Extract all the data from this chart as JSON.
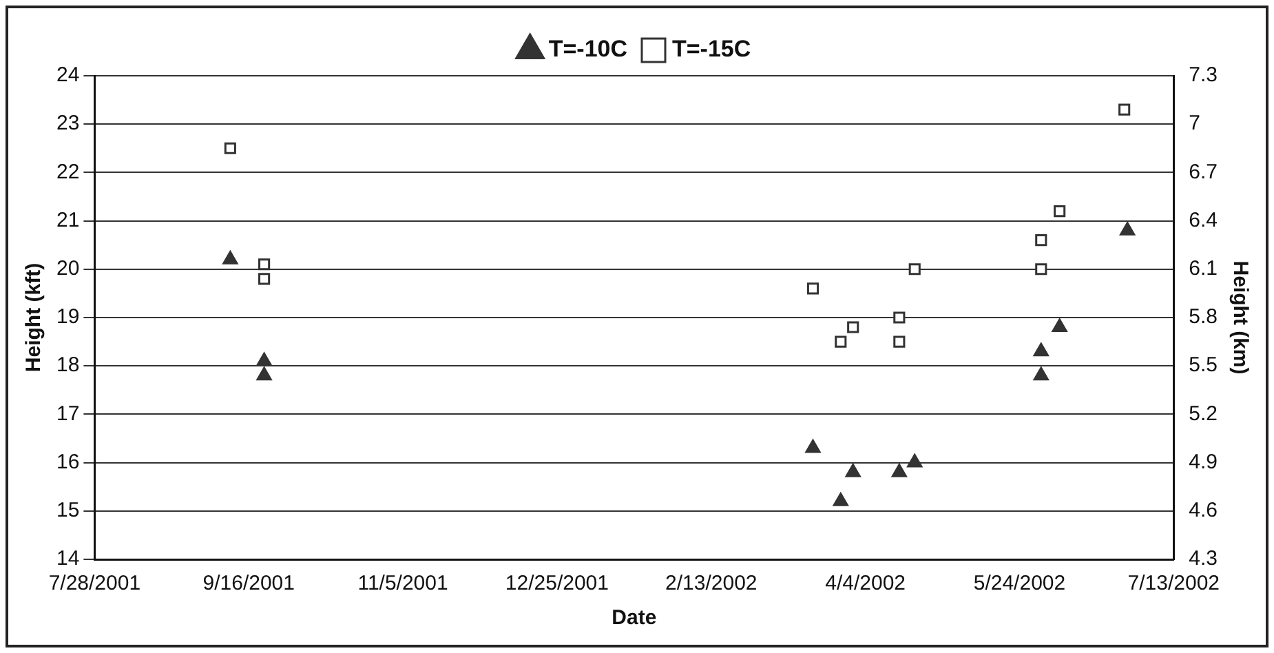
{
  "chart_data": {
    "type": "scatter",
    "xlabel": "Date",
    "ylabel": "Height (kft)",
    "y2label": "Height (km)",
    "xlim": [
      "2001-07-28",
      "2002-07-13"
    ],
    "xticks": [
      {
        "value": "2001-07-28",
        "label": "7/28/2001"
      },
      {
        "value": "2001-09-16",
        "label": "9/16/2001"
      },
      {
        "value": "2001-11-05",
        "label": "11/5/2001"
      },
      {
        "value": "2001-12-25",
        "label": "12/25/2001"
      },
      {
        "value": "2002-02-13",
        "label": "2/13/2002"
      },
      {
        "value": "2002-04-04",
        "label": "4/4/2002"
      },
      {
        "value": "2002-05-24",
        "label": "5/24/2002"
      },
      {
        "value": "2002-07-13",
        "label": "7/13/2002"
      }
    ],
    "ylim": [
      14,
      24
    ],
    "yticks": [
      14,
      15,
      16,
      17,
      18,
      19,
      20,
      21,
      22,
      23,
      24
    ],
    "y2lim": [
      4.3,
      7.3
    ],
    "y2ticks": [
      4.3,
      4.6,
      4.9,
      5.2,
      5.5,
      5.8,
      6.1,
      6.4,
      6.7,
      7,
      7.3
    ],
    "grid": "y",
    "legend": "top",
    "series": [
      {
        "name": "T=-10C",
        "color": "#333333",
        "marker": "triangle",
        "x": [
          "2001-09-10",
          "2001-09-21",
          "2001-09-21",
          "2002-03-18",
          "2002-03-27",
          "2002-03-31",
          "2002-04-15",
          "2002-04-20",
          "2002-05-31",
          "2002-05-31",
          "2002-06-06",
          "2002-06-28"
        ],
        "values": [
          20.2,
          18.1,
          17.8,
          16.3,
          15.2,
          15.8,
          15.8,
          16.0,
          18.3,
          17.8,
          18.8,
          20.8
        ]
      },
      {
        "name": "T=-15C",
        "color": "#333333",
        "marker": "square",
        "x": [
          "2001-09-10",
          "2001-09-21",
          "2001-09-21",
          "2002-03-18",
          "2002-03-27",
          "2002-03-31",
          "2002-04-15",
          "2002-04-15",
          "2002-04-20",
          "2002-05-31",
          "2002-05-31",
          "2002-06-06",
          "2002-06-27"
        ],
        "values": [
          22.5,
          20.1,
          19.8,
          19.6,
          18.5,
          18.8,
          19.0,
          18.5,
          20.0,
          20.0,
          20.6,
          21.2,
          23.3
        ]
      }
    ]
  }
}
